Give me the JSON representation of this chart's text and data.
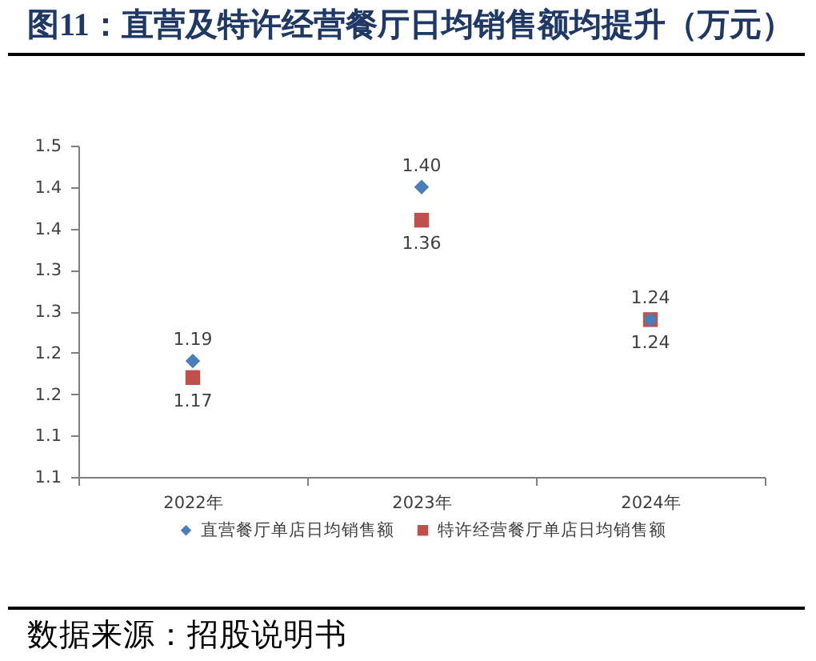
{
  "chart_data": {
    "type": "scatter",
    "title": "图11：直营及特许经营餐厅日均销售额均提升（万元）",
    "categories": [
      "2022年",
      "2023年",
      "2024年"
    ],
    "series": [
      {
        "name": "直营餐厅单店日均销售额",
        "color": "#4a7ebb",
        "marker": "diamond",
        "values": [
          1.19,
          1.4,
          1.24
        ],
        "value_labels": [
          "1.19",
          "1.40",
          "1.24"
        ]
      },
      {
        "name": "特许经营餐厅单店日均销售额",
        "color": "#c0504d",
        "marker": "square",
        "values": [
          1.17,
          1.36,
          1.24
        ],
        "value_labels": [
          "1.17",
          "1.36",
          "1.24"
        ]
      }
    ],
    "ylim": [
      1.05,
      1.45
    ],
    "yticks": [
      {
        "value": 1.05,
        "label": "1.1"
      },
      {
        "value": 1.1,
        "label": "1.1"
      },
      {
        "value": 1.15,
        "label": "1.2"
      },
      {
        "value": 1.2,
        "label": "1.2"
      },
      {
        "value": 1.25,
        "label": "1.3"
      },
      {
        "value": 1.3,
        "label": "1.3"
      },
      {
        "value": 1.35,
        "label": "1.4"
      },
      {
        "value": 1.4,
        "label": "1.4"
      },
      {
        "value": 1.45,
        "label": "1.5"
      }
    ],
    "legend": "bottom",
    "grid": false,
    "annotations": [
      "数据来源：招股说明书"
    ]
  }
}
